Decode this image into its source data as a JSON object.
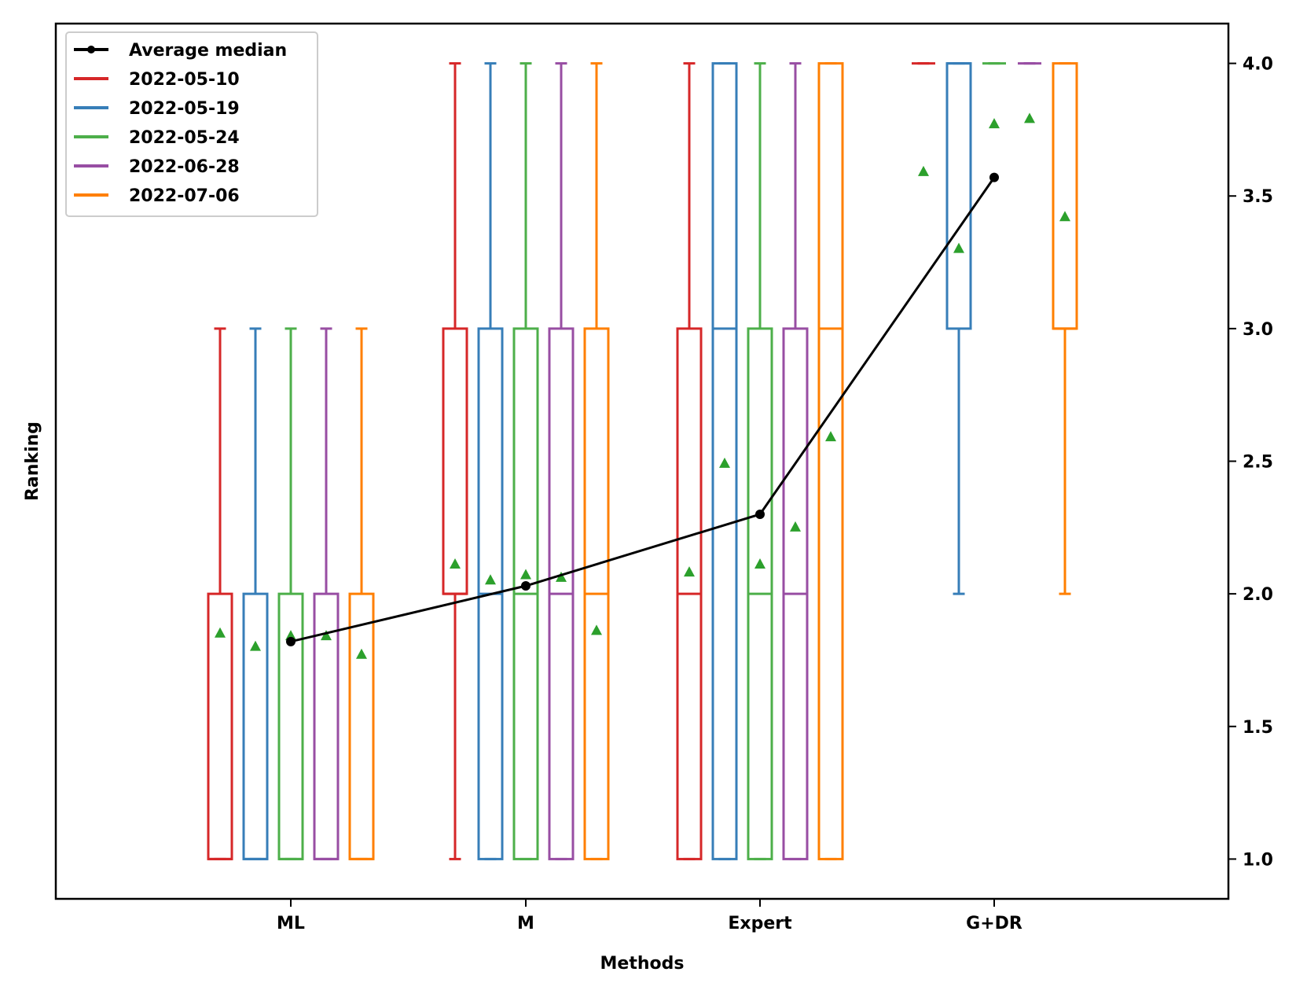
{
  "chart_data": {
    "type": "box",
    "xlabel": "Methods",
    "ylabel": "Ranking",
    "categories": [
      "ML",
      "M",
      "Expert",
      "G+DR"
    ],
    "ylim": [
      0.85,
      4.15
    ],
    "yticks": [
      "1.0",
      "1.5",
      "2.0",
      "2.5",
      "3.0",
      "3.5",
      "4.0"
    ],
    "y_axis_side": "right",
    "grid": false,
    "legend_position": "top-left",
    "series": [
      {
        "name": "2022-05-10",
        "color": "#d62728",
        "boxes": [
          {
            "whislo": 1,
            "q1": 1,
            "med": 1,
            "q3": 2,
            "whishi": 3,
            "mean": 1.85
          },
          {
            "whislo": 1,
            "q1": 2,
            "med": 2,
            "q3": 3,
            "whishi": 4,
            "mean": 2.11
          },
          {
            "whislo": 1,
            "q1": 1,
            "med": 2,
            "q3": 3,
            "whishi": 4,
            "mean": 2.08
          },
          {
            "whislo": 4,
            "q1": 4,
            "med": 4,
            "q3": 4,
            "whishi": 4,
            "mean": 3.59
          }
        ]
      },
      {
        "name": "2022-05-19",
        "color": "#377eb8",
        "boxes": [
          {
            "whislo": 1,
            "q1": 1,
            "med": 1,
            "q3": 2,
            "whishi": 3,
            "mean": 1.8
          },
          {
            "whislo": 1,
            "q1": 1,
            "med": 2,
            "q3": 3,
            "whishi": 4,
            "mean": 2.05
          },
          {
            "whislo": 1,
            "q1": 1,
            "med": 3,
            "q3": 4,
            "whishi": 4,
            "mean": 2.49
          },
          {
            "whislo": 2,
            "q1": 3,
            "med": 4,
            "q3": 4,
            "whishi": 4,
            "mean": 3.3
          }
        ]
      },
      {
        "name": "2022-05-24",
        "color": "#4daf4a",
        "boxes": [
          {
            "whislo": 1,
            "q1": 1,
            "med": 1,
            "q3": 2,
            "whishi": 3,
            "mean": 1.84
          },
          {
            "whislo": 1,
            "q1": 1,
            "med": 2,
            "q3": 3,
            "whishi": 4,
            "mean": 2.07
          },
          {
            "whislo": 1,
            "q1": 1,
            "med": 2,
            "q3": 3,
            "whishi": 4,
            "mean": 2.11
          },
          {
            "whislo": 4,
            "q1": 4,
            "med": 4,
            "q3": 4,
            "whishi": 4,
            "mean": 3.77
          }
        ]
      },
      {
        "name": "2022-06-28",
        "color": "#984ea3",
        "boxes": [
          {
            "whislo": 1,
            "q1": 1,
            "med": 1,
            "q3": 2,
            "whishi": 3,
            "mean": 1.84
          },
          {
            "whislo": 1,
            "q1": 1,
            "med": 2,
            "q3": 3,
            "whishi": 4,
            "mean": 2.06
          },
          {
            "whislo": 1,
            "q1": 1,
            "med": 2,
            "q3": 3,
            "whishi": 4,
            "mean": 2.25
          },
          {
            "whislo": 4,
            "q1": 4,
            "med": 4,
            "q3": 4,
            "whishi": 4,
            "mean": 3.79
          }
        ]
      },
      {
        "name": "2022-07-06",
        "color": "#ff7f00",
        "boxes": [
          {
            "whislo": 1,
            "q1": 1,
            "med": 1,
            "q3": 2,
            "whishi": 3,
            "mean": 1.77
          },
          {
            "whislo": 1,
            "q1": 1,
            "med": 2,
            "q3": 3,
            "whishi": 4,
            "mean": 1.86
          },
          {
            "whislo": 1,
            "q1": 1,
            "med": 3,
            "q3": 4,
            "whishi": 4,
            "mean": 2.59
          },
          {
            "whislo": 2,
            "q1": 3,
            "med": 3,
            "q3": 4,
            "whishi": 4,
            "mean": 3.42
          }
        ]
      }
    ],
    "average_median": {
      "name": "Average median",
      "color": "#000000",
      "values": [
        1.82,
        2.03,
        2.3,
        3.57
      ]
    },
    "mean_marker_color": "#2ca02c"
  }
}
